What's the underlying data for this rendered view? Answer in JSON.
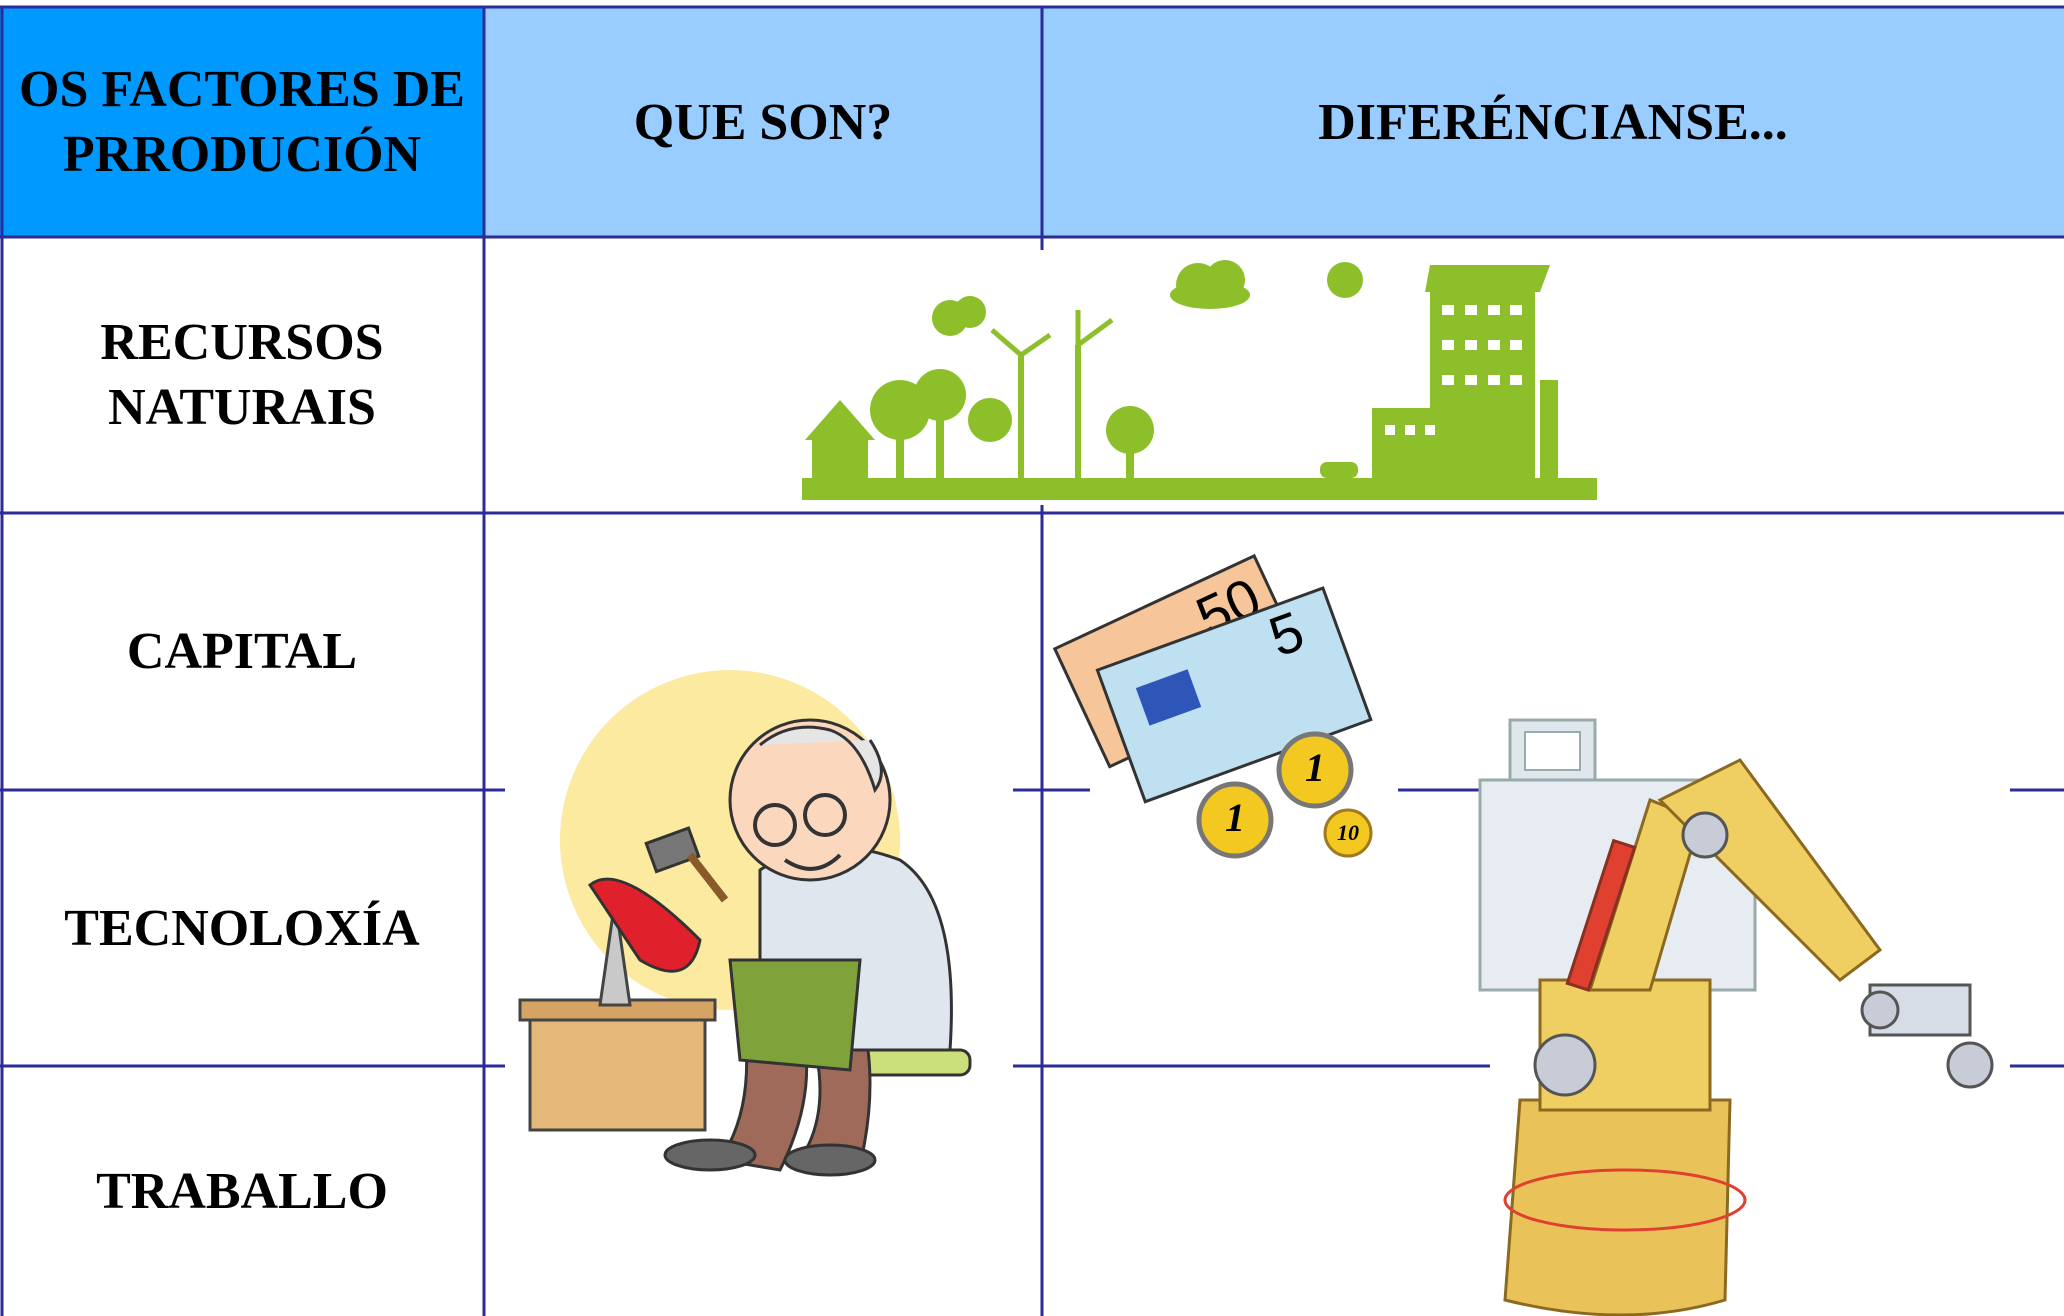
{
  "table": {
    "header": [
      "OS FACTORES DE PRRODUCIÓN",
      "QUE SON?",
      "DIFERÉNCIANSE..."
    ],
    "rows": [
      "RECURSOS NATURAIS",
      "CAPITAL",
      "TECNOLOXÍA",
      "TRABALLO"
    ]
  },
  "illustrations": {
    "banknotes": [
      "50",
      "5"
    ],
    "coins": [
      "1",
      "1",
      "10"
    ]
  }
}
